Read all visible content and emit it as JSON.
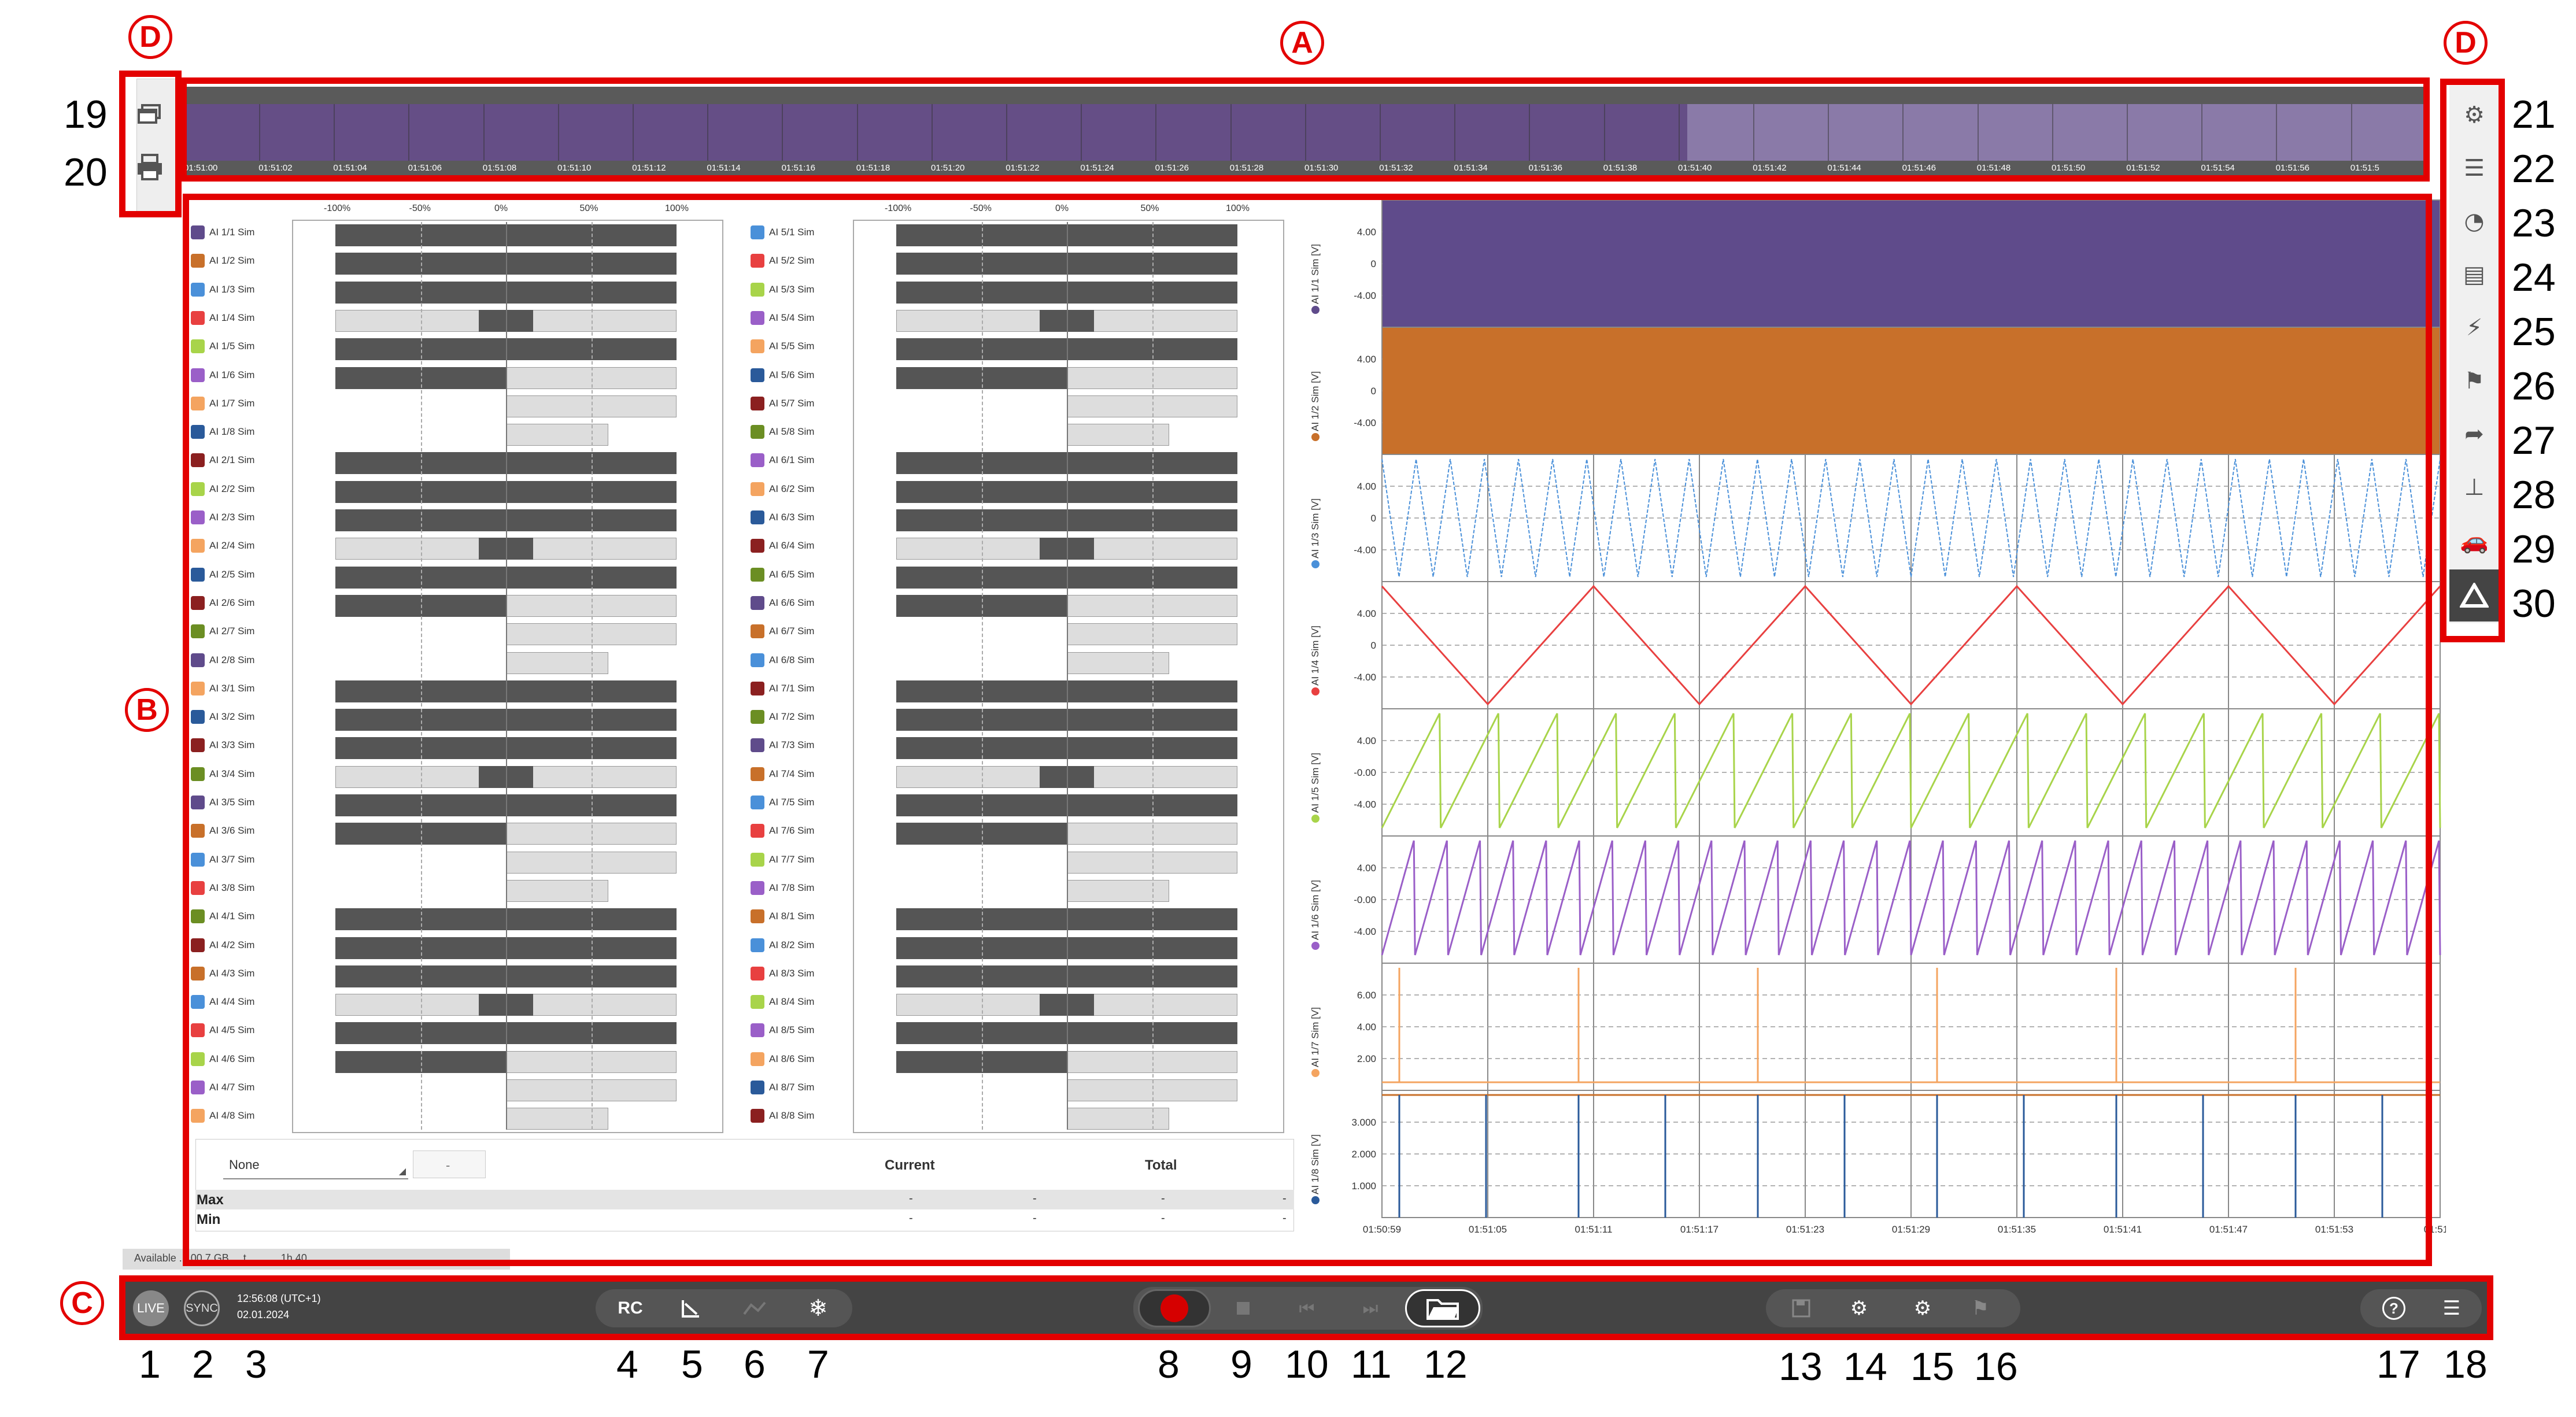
{
  "markers": {
    "A": "A",
    "B": "B",
    "C": "C",
    "D_left": "D",
    "D_right": "D"
  },
  "callouts": {
    "n1": "1",
    "n2": "2",
    "n3": "3",
    "n4": "4",
    "n5": "5",
    "n6": "6",
    "n7": "7",
    "n8": "8",
    "n9": "9",
    "n10": "10",
    "n11": "11",
    "n12": "12",
    "n13": "13",
    "n14": "14",
    "n15": "15",
    "n16": "16",
    "n17": "17",
    "n18": "18",
    "n19": "19",
    "n20": "20",
    "n21": "21",
    "n22": "22",
    "n23": "23",
    "n24": "24",
    "n25": "25",
    "n26": "26",
    "n27": "27",
    "n28": "28",
    "n29": "29",
    "n30": "30"
  },
  "overview_ticks": [
    "01:51:00",
    "01:51:02",
    "01:51:04",
    "01:51:06",
    "01:51:08",
    "01:51:10",
    "01:51:12",
    "01:51:14",
    "01:51:16",
    "01:51:18",
    "01:51:20",
    "01:51:22",
    "01:51:24",
    "01:51:26",
    "01:51:28",
    "01:51:30",
    "01:51:32",
    "01:51:34",
    "01:51:36",
    "01:51:38",
    "01:51:40",
    "01:51:42",
    "01:51:44",
    "01:51:46",
    "01:51:48",
    "01:51:50",
    "01:51:52",
    "01:51:54",
    "01:51:56",
    "01:51:5"
  ],
  "bar_scale": [
    "-100%",
    "-50%",
    "0%",
    "50%",
    "100%"
  ],
  "channels_left": [
    {
      "name": "AI 1/1 Sim",
      "color": "#5f4b8b",
      "v": [
        -1,
        1
      ]
    },
    {
      "name": "AI 1/2 Sim",
      "color": "#c8702a",
      "v": [
        -1,
        1
      ]
    },
    {
      "name": "AI 1/3 Sim",
      "color": "#4a90d9",
      "v": [
        -1,
        1
      ]
    },
    {
      "name": "AI 1/4 Sim",
      "color": "#e84040",
      "v": [
        -0.16,
        0.16
      ]
    },
    {
      "name": "AI 1/5 Sim",
      "color": "#a8d44a",
      "v": [
        -1,
        1
      ]
    },
    {
      "name": "AI 1/6 Sim",
      "color": "#9a5fc8",
      "v": [
        -1,
        0
      ]
    },
    {
      "name": "AI 1/7 Sim",
      "color": "#f4a460",
      "v": [
        0,
        0
      ]
    },
    {
      "name": "AI 1/8 Sim",
      "color": "#2a5a9a",
      "v": [
        0,
        0
      ]
    },
    {
      "name": "AI 2/1 Sim",
      "color": "#8b2020",
      "v": [
        -1,
        1
      ]
    },
    {
      "name": "AI 2/2 Sim",
      "color": "#a8d44a",
      "v": [
        -1,
        1
      ]
    },
    {
      "name": "AI 2/3 Sim",
      "color": "#9a5fc8",
      "v": [
        -1,
        1
      ]
    },
    {
      "name": "AI 2/4 Sim",
      "color": "#f4a460",
      "v": [
        -0.16,
        0.16
      ]
    },
    {
      "name": "AI 2/5 Sim",
      "color": "#2a5a9a",
      "v": [
        -1,
        1
      ]
    },
    {
      "name": "AI 2/6 Sim",
      "color": "#8b2020",
      "v": [
        -1,
        0
      ]
    },
    {
      "name": "AI 2/7 Sim",
      "color": "#6b8e23",
      "v": [
        0,
        0
      ]
    },
    {
      "name": "AI 2/8 Sim",
      "color": "#5f4b8b",
      "v": [
        0,
        0
      ]
    },
    {
      "name": "AI 3/1 Sim",
      "color": "#f4a460",
      "v": [
        -1,
        1
      ]
    },
    {
      "name": "AI 3/2 Sim",
      "color": "#2a5a9a",
      "v": [
        -1,
        1
      ]
    },
    {
      "name": "AI 3/3 Sim",
      "color": "#8b2020",
      "v": [
        -1,
        1
      ]
    },
    {
      "name": "AI 3/4 Sim",
      "color": "#6b8e23",
      "v": [
        -0.16,
        0.16
      ]
    },
    {
      "name": "AI 3/5 Sim",
      "color": "#5f4b8b",
      "v": [
        -1,
        1
      ]
    },
    {
      "name": "AI 3/6 Sim",
      "color": "#c8702a",
      "v": [
        -1,
        0
      ]
    },
    {
      "name": "AI 3/7 Sim",
      "color": "#4a90d9",
      "v": [
        0,
        0
      ]
    },
    {
      "name": "AI 3/8 Sim",
      "color": "#e84040",
      "v": [
        0,
        0
      ]
    },
    {
      "name": "AI 4/1 Sim",
      "color": "#6b8e23",
      "v": [
        -1,
        1
      ]
    },
    {
      "name": "AI 4/2 Sim",
      "color": "#8b2020",
      "v": [
        -1,
        1
      ]
    },
    {
      "name": "AI 4/3 Sim",
      "color": "#c8702a",
      "v": [
        -1,
        1
      ]
    },
    {
      "name": "AI 4/4 Sim",
      "color": "#4a90d9",
      "v": [
        -0.16,
        0.16
      ]
    },
    {
      "name": "AI 4/5 Sim",
      "color": "#e84040",
      "v": [
        -1,
        1
      ]
    },
    {
      "name": "AI 4/6 Sim",
      "color": "#a8d44a",
      "v": [
        -1,
        0
      ]
    },
    {
      "name": "AI 4/7 Sim",
      "color": "#9a5fc8",
      "v": [
        0,
        0
      ]
    },
    {
      "name": "AI 4/8 Sim",
      "color": "#f4a460",
      "v": [
        0,
        0
      ]
    }
  ],
  "channels_right": [
    {
      "name": "AI 5/1 Sim",
      "color": "#4a90d9",
      "v": [
        -1,
        1
      ]
    },
    {
      "name": "AI 5/2 Sim",
      "color": "#e84040",
      "v": [
        -1,
        1
      ]
    },
    {
      "name": "AI 5/3 Sim",
      "color": "#a8d44a",
      "v": [
        -1,
        1
      ]
    },
    {
      "name": "AI 5/4 Sim",
      "color": "#9a5fc8",
      "v": [
        -0.16,
        0.16
      ]
    },
    {
      "name": "AI 5/5 Sim",
      "color": "#f4a460",
      "v": [
        -1,
        1
      ]
    },
    {
      "name": "AI 5/6 Sim",
      "color": "#2a5a9a",
      "v": [
        -1,
        0
      ]
    },
    {
      "name": "AI 5/7 Sim",
      "color": "#8b2020",
      "v": [
        0,
        0
      ]
    },
    {
      "name": "AI 5/8 Sim",
      "color": "#6b8e23",
      "v": [
        0,
        0
      ]
    },
    {
      "name": "AI 6/1 Sim",
      "color": "#9a5fc8",
      "v": [
        -1,
        1
      ]
    },
    {
      "name": "AI 6/2 Sim",
      "color": "#f4a460",
      "v": [
        -1,
        1
      ]
    },
    {
      "name": "AI 6/3 Sim",
      "color": "#2a5a9a",
      "v": [
        -1,
        1
      ]
    },
    {
      "name": "AI 6/4 Sim",
      "color": "#8b2020",
      "v": [
        -0.16,
        0.16
      ]
    },
    {
      "name": "AI 6/5 Sim",
      "color": "#6b8e23",
      "v": [
        -1,
        1
      ]
    },
    {
      "name": "AI 6/6 Sim",
      "color": "#5f4b8b",
      "v": [
        -1,
        0
      ]
    },
    {
      "name": "AI 6/7 Sim",
      "color": "#c8702a",
      "v": [
        0,
        0
      ]
    },
    {
      "name": "AI 6/8 Sim",
      "color": "#4a90d9",
      "v": [
        0,
        0
      ]
    },
    {
      "name": "AI 7/1 Sim",
      "color": "#8b2020",
      "v": [
        -1,
        1
      ]
    },
    {
      "name": "AI 7/2 Sim",
      "color": "#6b8e23",
      "v": [
        -1,
        1
      ]
    },
    {
      "name": "AI 7/3 Sim",
      "color": "#5f4b8b",
      "v": [
        -1,
        1
      ]
    },
    {
      "name": "AI 7/4 Sim",
      "color": "#c8702a",
      "v": [
        -0.16,
        0.16
      ]
    },
    {
      "name": "AI 7/5 Sim",
      "color": "#4a90d9",
      "v": [
        -1,
        1
      ]
    },
    {
      "name": "AI 7/6 Sim",
      "color": "#e84040",
      "v": [
        -1,
        0
      ]
    },
    {
      "name": "AI 7/7 Sim",
      "color": "#a8d44a",
      "v": [
        0,
        0
      ]
    },
    {
      "name": "AI 7/8 Sim",
      "color": "#9a5fc8",
      "v": [
        0,
        0
      ]
    },
    {
      "name": "AI 8/1 Sim",
      "color": "#c8702a",
      "v": [
        -1,
        1
      ]
    },
    {
      "name": "AI 8/2 Sim",
      "color": "#4a90d9",
      "v": [
        -1,
        1
      ]
    },
    {
      "name": "AI 8/3 Sim",
      "color": "#e84040",
      "v": [
        -1,
        1
      ]
    },
    {
      "name": "AI 8/4 Sim",
      "color": "#a8d44a",
      "v": [
        -0.16,
        0.16
      ]
    },
    {
      "name": "AI 8/5 Sim",
      "color": "#9a5fc8",
      "v": [
        -1,
        1
      ]
    },
    {
      "name": "AI 8/6 Sim",
      "color": "#f4a460",
      "v": [
        -1,
        0
      ]
    },
    {
      "name": "AI 8/7 Sim",
      "color": "#2a5a9a",
      "v": [
        0,
        0
      ]
    },
    {
      "name": "AI 8/8 Sim",
      "color": "#8b2020",
      "v": [
        0,
        0
      ]
    }
  ],
  "stats": {
    "dropdown_value": "None",
    "field_value": "-",
    "current_label": "Current",
    "total_label": "Total",
    "max_label": "Max",
    "min_label": "Min",
    "dash": "-"
  },
  "status_strip": "Available ... 00.7 GB ... t... ... ... 1h 40",
  "bottom": {
    "live": "LIVE",
    "sync": "SYNC",
    "time": "12:56:08 (UTC+1)",
    "date": "02.01.2024",
    "rc": "RC"
  },
  "charts": [
    {
      "label": "AI 1/1 Sim [V]",
      "color": "#5f4b8b",
      "type": "solid",
      "yticks": [
        "4.00",
        "0",
        "-4.00"
      ]
    },
    {
      "label": "AI 1/2 Sim [V]",
      "color": "#c8702a",
      "type": "solid",
      "yticks": [
        "4.00",
        "0",
        "-4.00"
      ]
    },
    {
      "label": "AI 1/3 Sim [V]",
      "color": "#4a90d9",
      "type": "tri_fast",
      "yticks": [
        "4.00",
        "0",
        "-4.00"
      ]
    },
    {
      "label": "AI 1/4 Sim [V]",
      "color": "#e84040",
      "type": "tri_slow",
      "yticks": [
        "4.00",
        "0",
        "-4.00"
      ]
    },
    {
      "label": "AI 1/5 Sim [V]",
      "color": "#a8d44a",
      "type": "saw",
      "yticks": [
        "4.00",
        "-0.00",
        "-4.00"
      ]
    },
    {
      "label": "AI 1/6 Sim [V]",
      "color": "#9a5fc8",
      "type": "saw_fast",
      "yticks": [
        "4.00",
        "-0.00",
        "-4.00"
      ]
    },
    {
      "label": "AI 1/7 Sim [V]",
      "color": "#f4a460",
      "type": "spike",
      "yticks": [
        "6.00",
        "4.00",
        "2.00"
      ]
    },
    {
      "label": "AI 1/8 Sim [V]",
      "color": "#2a5a9a",
      "type": "spike2",
      "yticks": [
        "3.000",
        "2.000",
        "1.000"
      ]
    }
  ],
  "chart_xticks": [
    "01:50:59",
    "01:51:05",
    "01:51:11",
    "01:51:17",
    "01:51:23",
    "01:51:29",
    "01:51:35",
    "01:51:41",
    "01:51:47",
    "01:51:53",
    "01:51:5"
  ],
  "icons": {
    "left_top": "windows-icon",
    "left_bottom": "printer-icon"
  }
}
